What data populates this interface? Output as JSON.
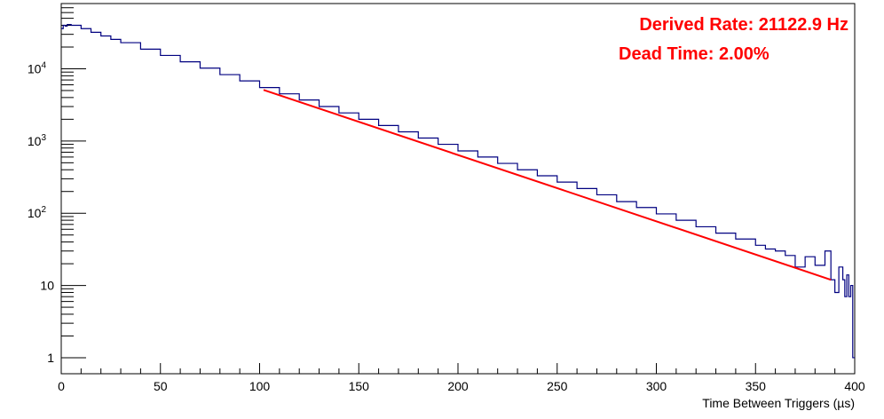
{
  "chart_data": {
    "type": "line",
    "title": "",
    "xlabel": "Time Between Triggers (µs)",
    "ylabel": "",
    "xlim": [
      0,
      400
    ],
    "ylim": [
      0.6,
      80000
    ],
    "y_scale": "log",
    "grid": false,
    "x_ticks": [
      "0",
      "50",
      "100",
      "150",
      "200",
      "250",
      "300",
      "350",
      "400"
    ],
    "x_tick_values": [
      0,
      50,
      100,
      150,
      200,
      250,
      300,
      350,
      400
    ],
    "y_ticks": [
      {
        "value": 1,
        "base": "1",
        "exp": ""
      },
      {
        "value": 10,
        "base": "10",
        "exp": ""
      },
      {
        "value": 100,
        "base": "10",
        "exp": "2"
      },
      {
        "value": 1000,
        "base": "10",
        "exp": "3"
      },
      {
        "value": 10000,
        "base": "10",
        "exp": "4"
      }
    ],
    "series": [
      {
        "color": "#000080",
        "style": "histogram",
        "x": [
          0,
          1,
          2,
          3,
          5,
          10,
          15,
          20,
          25,
          30,
          40,
          50,
          60,
          70,
          80,
          90,
          100,
          110,
          120,
          130,
          140,
          150,
          160,
          170,
          180,
          190,
          200,
          210,
          220,
          230,
          240,
          250,
          260,
          270,
          280,
          290,
          300,
          310,
          320,
          330,
          340,
          350,
          355,
          360,
          365,
          370,
          375,
          380,
          385,
          388,
          390,
          392,
          394,
          395,
          396,
          397,
          398,
          399
        ],
        "y": [
          36000,
          40000,
          39000,
          41000,
          40000,
          36000,
          32000,
          28500,
          25500,
          23000,
          18700,
          15300,
          12500,
          10200,
          8300,
          6800,
          5500,
          4500,
          3700,
          3000,
          2450,
          2000,
          1640,
          1340,
          1100,
          900,
          730,
          600,
          490,
          400,
          330,
          270,
          220,
          180,
          145,
          120,
          98,
          80,
          65,
          53,
          44,
          36,
          32,
          30,
          26,
          18,
          25,
          19,
          30,
          12,
          8,
          18,
          12,
          7,
          14,
          7,
          10,
          1
        ]
      },
      {
        "color": "#ff0000",
        "style": "fit-line",
        "x": [
          102,
          388
        ],
        "y": [
          5100,
          12
        ]
      }
    ],
    "annotations": [
      {
        "text": "Derived Rate: 21122.9 Hz",
        "color": "#ff0000"
      },
      {
        "text": "Dead Time: 2.00%",
        "color": "#ff0000"
      }
    ]
  }
}
